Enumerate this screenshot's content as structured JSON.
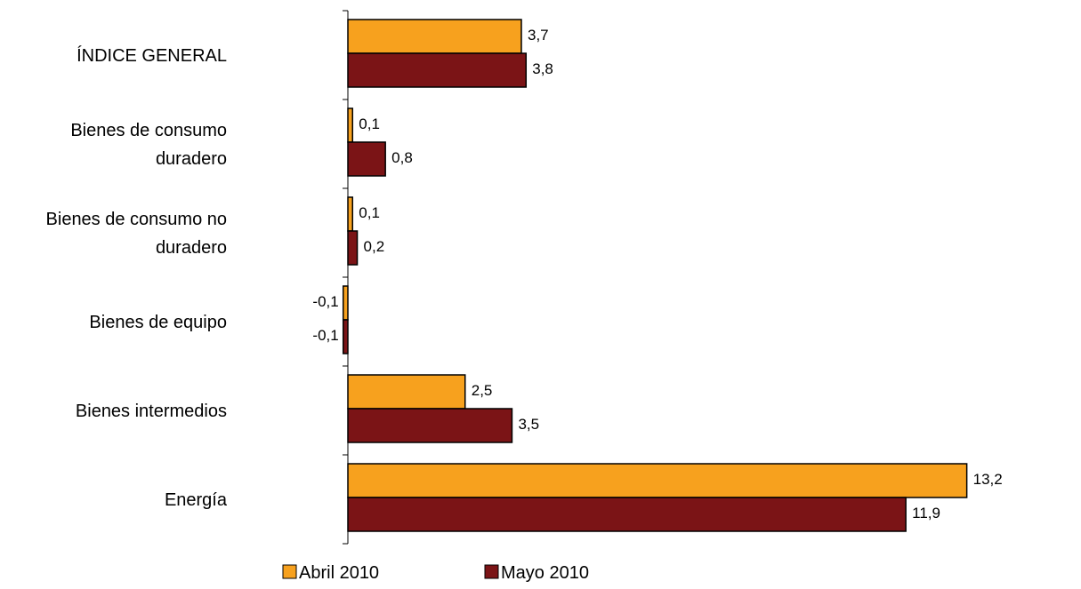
{
  "chart_data": {
    "type": "bar",
    "orientation": "horizontal",
    "categories": [
      [
        "ÍNDICE GENERAL"
      ],
      [
        "Bienes de consumo",
        "duradero"
      ],
      [
        "Bienes de consumo no",
        "duradero"
      ],
      [
        "Bienes de equipo"
      ],
      [
        "Bienes intermedios"
      ],
      [
        "Energía"
      ]
    ],
    "series": [
      {
        "name": "Abril 2010",
        "color": "#F7A11E",
        "values": [
          3.7,
          0.1,
          0.1,
          -0.1,
          2.5,
          13.2
        ],
        "labels": [
          "3,7",
          "0,1",
          "0,1",
          "-0,1",
          "2,5",
          "13,2"
        ]
      },
      {
        "name": "Mayo 2010",
        "color": "#7B1416",
        "values": [
          3.8,
          0.8,
          0.2,
          -0.1,
          3.5,
          11.9
        ],
        "labels": [
          "3,8",
          "0,8",
          "0,2",
          "-0,1",
          "3,5",
          "11,9"
        ]
      }
    ],
    "xlim": [
      -0.2,
      14
    ],
    "grid": false,
    "legend": "bottom"
  }
}
